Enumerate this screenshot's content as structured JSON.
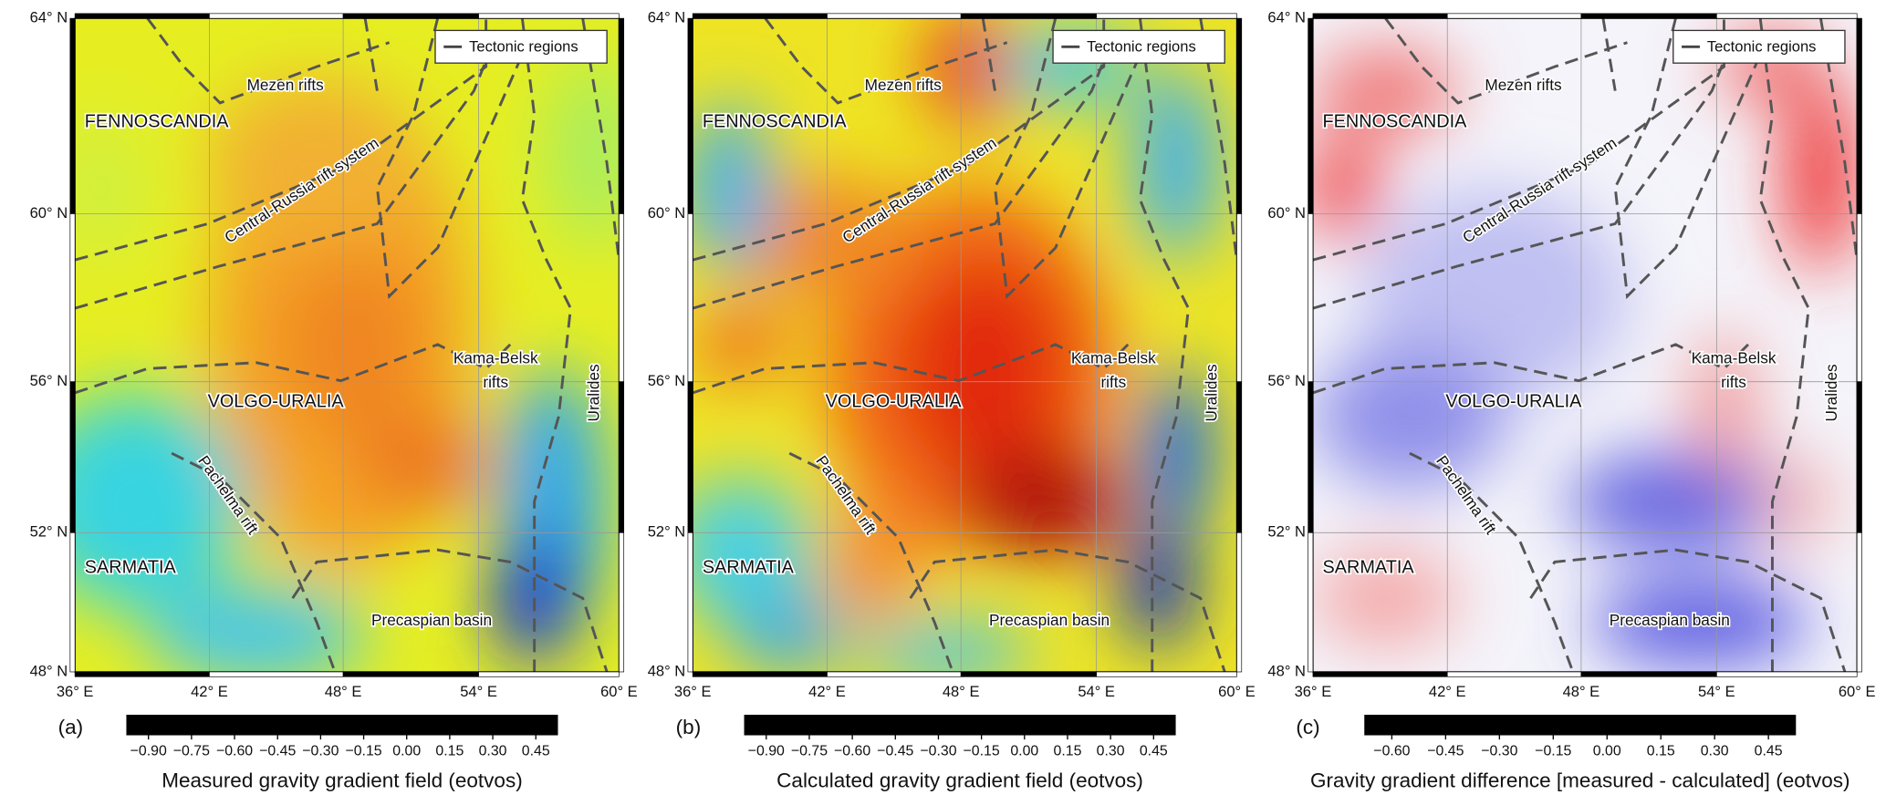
{
  "legend_label": "Tectonic regions",
  "lat_labels": [
    "64° N",
    "60° N",
    "56° N",
    "52° N",
    "48° N"
  ],
  "lon_labels": [
    "36° E",
    "42° E",
    "48° E",
    "54° E",
    "60° E"
  ],
  "regions": {
    "fennoscandia": "FENNOSCANDIA",
    "mezen": "Mezen rifts",
    "central_russia": "Central-Russia rift system",
    "volgo_uralia": "VOLGO-URALIA",
    "kama_belsk_1": "Kama-Belsk",
    "kama_belsk_2": "rifts",
    "uralides": "Uralides",
    "pachelma": "Pachelma rift",
    "sarmatia": "SARMATIA",
    "precaspian": "Precaspian basin"
  },
  "panels": [
    {
      "letter": "(a)",
      "colorbar": {
        "label": "Measured gravity gradient field (eotvos)",
        "scale": "jet",
        "range": [
          -0.975,
          0.525
        ],
        "ticks": [
          {
            "value": -0.9,
            "label": "−0.90"
          },
          {
            "value": -0.75,
            "label": "−0.75"
          },
          {
            "value": -0.6,
            "label": "−0.60"
          },
          {
            "value": -0.45,
            "label": "−0.45"
          },
          {
            "value": -0.3,
            "label": "−0.30"
          },
          {
            "value": -0.15,
            "label": "−0.15"
          },
          {
            "value": 0,
            "label": "0.00"
          },
          {
            "value": 0.15,
            "label": "0.15"
          },
          {
            "value": 0.3,
            "label": "0.30"
          },
          {
            "value": 0.45,
            "label": "0.45"
          }
        ]
      }
    },
    {
      "letter": "(b)",
      "colorbar": {
        "label": "Calculated gravity gradient field (eotvos)",
        "scale": "jet",
        "range": [
          -0.975,
          0.525
        ],
        "ticks": [
          {
            "value": -0.9,
            "label": "−0.90"
          },
          {
            "value": -0.75,
            "label": "−0.75"
          },
          {
            "value": -0.6,
            "label": "−0.60"
          },
          {
            "value": -0.45,
            "label": "−0.45"
          },
          {
            "value": -0.3,
            "label": "−0.30"
          },
          {
            "value": -0.15,
            "label": "−0.15"
          },
          {
            "value": 0,
            "label": "0.00"
          },
          {
            "value": 0.15,
            "label": "0.15"
          },
          {
            "value": 0.3,
            "label": "0.30"
          },
          {
            "value": 0.45,
            "label": "0.45"
          }
        ]
      }
    },
    {
      "letter": "(c)",
      "colorbar": {
        "label": "Gravity gradient difference [measured - calculated] (eotvos)",
        "scale": "diverging",
        "range": [
          -0.675,
          0.525
        ],
        "ticks": [
          {
            "value": -0.6,
            "label": "−0.60"
          },
          {
            "value": -0.45,
            "label": "−0.45"
          },
          {
            "value": -0.3,
            "label": "−0.30"
          },
          {
            "value": -0.15,
            "label": "−0.15"
          },
          {
            "value": 0,
            "label": "0.00"
          },
          {
            "value": 0.15,
            "label": "0.15"
          },
          {
            "value": 0.3,
            "label": "0.30"
          },
          {
            "value": 0.45,
            "label": "0.45"
          }
        ]
      }
    }
  ]
}
